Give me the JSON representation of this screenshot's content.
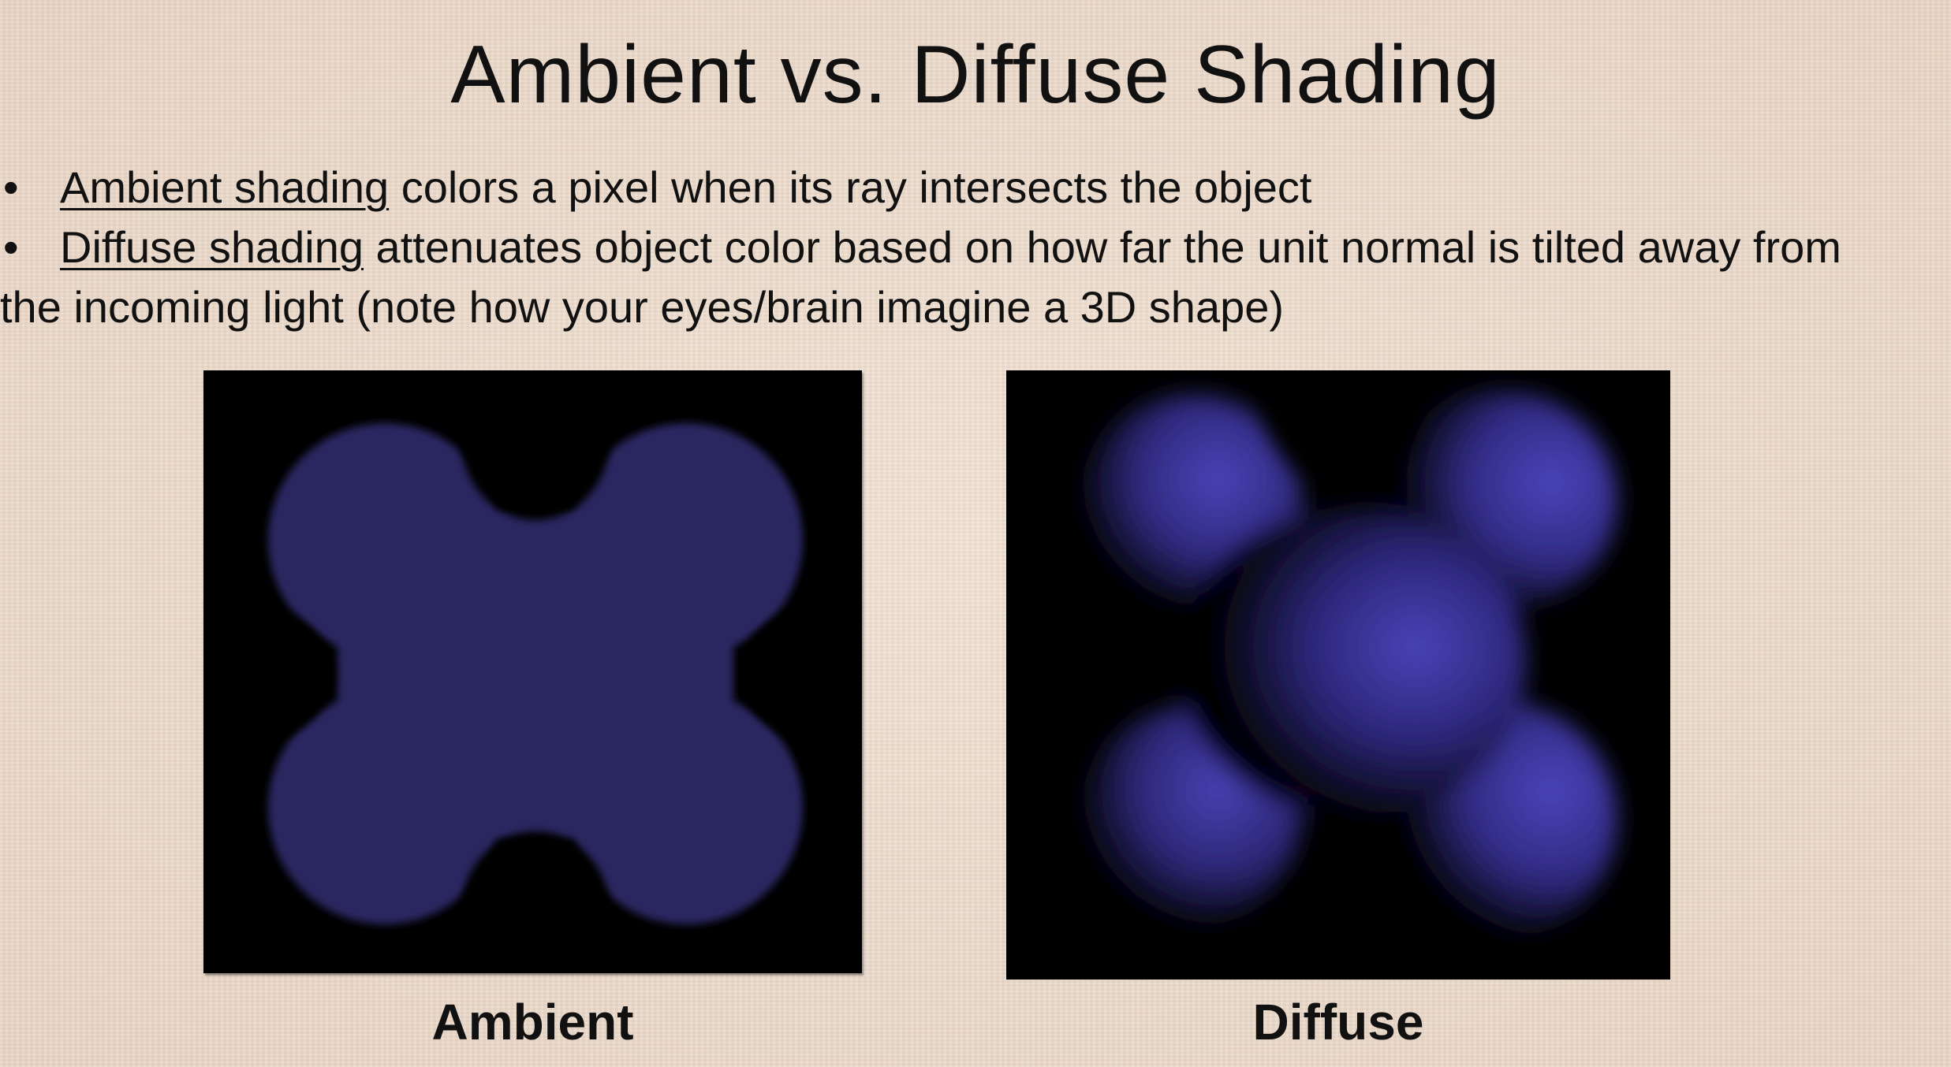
{
  "slide": {
    "title": "Ambient vs. Diffuse Shading"
  },
  "bullets": [
    {
      "marker": "•",
      "term": "Ambient shading",
      "text": " colors a pixel when its ray intersects the object"
    },
    {
      "marker": "•",
      "term": "Diffuse shading",
      "text": " attenuates object color based on how far the unit normal is tilted away from",
      "continuation": "the incoming light (note how your eyes/brain imagine a 3D shape)"
    }
  ],
  "figures": {
    "ambient": {
      "caption": "Ambient",
      "background_color": "#000000",
      "shape_color": "#2a2760"
    },
    "diffuse": {
      "caption": "Diffuse",
      "background_color": "#000000",
      "highlight_color": "#4a43b8",
      "shadow_color": "#000000"
    }
  }
}
